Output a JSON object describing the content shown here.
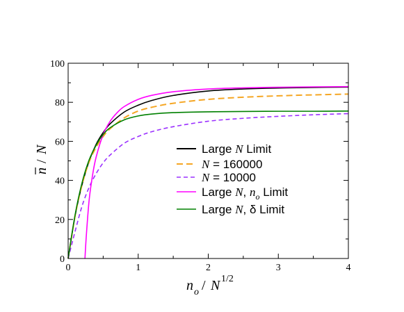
{
  "chart_data": {
    "type": "line",
    "xlabel": "n_o / N^{1/2}",
    "ylabel": "n̄ / N",
    "xlim": [
      0,
      4
    ],
    "ylim": [
      0,
      100
    ],
    "xticks": [
      "0",
      "1",
      "2",
      "3",
      "4"
    ],
    "yticks": [
      "0",
      "20",
      "40",
      "60",
      "80",
      "100"
    ],
    "grid": false,
    "legend_position": "center-right",
    "series": [
      {
        "name": "Large N Limit",
        "style": "solid",
        "color": "#000000",
        "x": [
          0,
          0.1,
          0.2,
          0.3,
          0.4,
          0.5,
          0.6,
          0.8,
          1.0,
          1.2,
          1.5,
          2.0,
          2.5,
          3.0,
          3.5,
          4.0
        ],
        "y": [
          0,
          22,
          38,
          50,
          58.5,
          64.5,
          69,
          75,
          78.5,
          81,
          83.5,
          85.8,
          86.8,
          87.3,
          87.6,
          87.8
        ]
      },
      {
        "name": "N = 160000",
        "style": "dashed",
        "color": "#f5a623",
        "x": [
          0,
          0.1,
          0.2,
          0.3,
          0.4,
          0.5,
          0.6,
          0.8,
          1.0,
          1.2,
          1.5,
          2.0,
          2.5,
          3.0,
          3.5,
          4.0
        ],
        "y": [
          0,
          22,
          38,
          49.5,
          57,
          62.5,
          66.5,
          72,
          75.5,
          77.5,
          79.5,
          81.5,
          82.6,
          83.3,
          83.8,
          84.2
        ]
      },
      {
        "name": "N = 10000",
        "style": "dashed",
        "color": "#9b30ff",
        "x": [
          0,
          0.1,
          0.2,
          0.3,
          0.4,
          0.5,
          0.6,
          0.8,
          1.0,
          1.2,
          1.5,
          2.0,
          2.5,
          3.0,
          3.5,
          4.0
        ],
        "y": [
          0,
          14,
          27,
          36.5,
          43.5,
          49,
          53,
          59,
          62.5,
          65,
          67.5,
          70.3,
          71.8,
          72.8,
          73.6,
          74.2
        ]
      },
      {
        "name": "Large N, n_o Limit",
        "style": "solid",
        "color": "#ff00ff",
        "x": [
          0.24,
          0.26,
          0.3,
          0.35,
          0.4,
          0.5,
          0.6,
          0.7,
          0.8,
          1.0,
          1.2,
          1.5,
          2.0,
          2.5,
          3.0,
          3.5,
          4.0
        ],
        "y": [
          0,
          12,
          30,
          43,
          52,
          63.5,
          70.3,
          74.7,
          77.8,
          81.5,
          83.6,
          85.4,
          86.8,
          87.4,
          87.7,
          87.9,
          88
        ]
      },
      {
        "name": "Large N, δ Limit",
        "style": "solid",
        "color": "#008000",
        "x": [
          0,
          0.1,
          0.2,
          0.3,
          0.4,
          0.5,
          0.6,
          0.8,
          1.0,
          1.2,
          1.5,
          2.0,
          2.5,
          3.0,
          3.5,
          4.0
        ],
        "y": [
          0,
          22.5,
          39,
          50.5,
          58,
          63.5,
          67,
          71,
          73,
          74,
          74.7,
          75.1,
          75.3,
          75.4,
          75.4,
          75.5
        ]
      }
    ]
  }
}
